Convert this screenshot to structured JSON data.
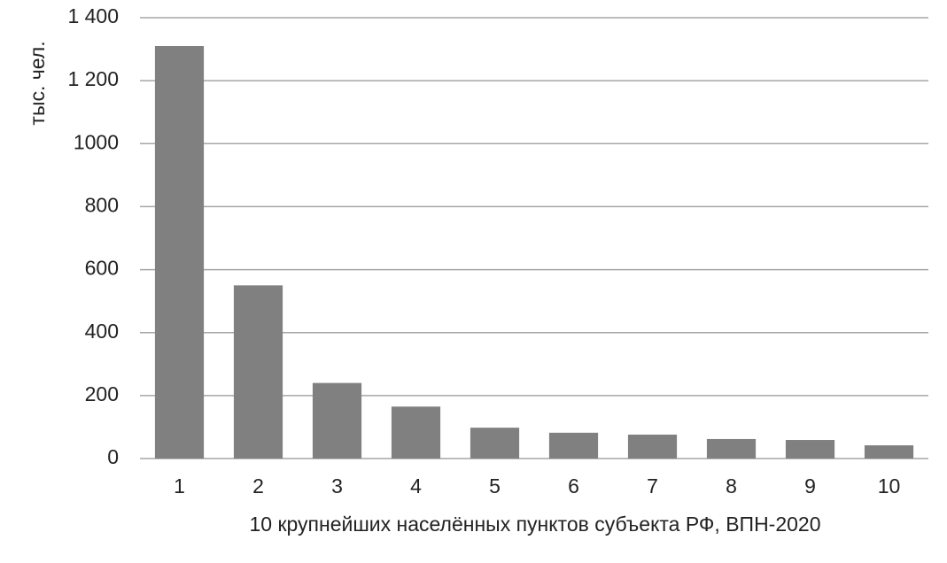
{
  "chart_data": {
    "type": "bar",
    "x_label": "10 крупнейших населённых пунктов субъекта РФ, ВПН-2020",
    "y_label": "тыс. чел.",
    "categories": [
      "1",
      "2",
      "3",
      "4",
      "5",
      "6",
      "7",
      "8",
      "9",
      "10"
    ],
    "values": [
      1310,
      550,
      240,
      165,
      98,
      82,
      76,
      62,
      59,
      42
    ],
    "color": "#808080",
    "ylim": [
      0,
      1400
    ],
    "yticks": [
      0,
      200,
      400,
      600,
      800,
      1000,
      {
        "value": 1200,
        "label": "1 200"
      },
      {
        "value": 1400,
        "label": "1 400"
      }
    ],
    "grid": true
  }
}
